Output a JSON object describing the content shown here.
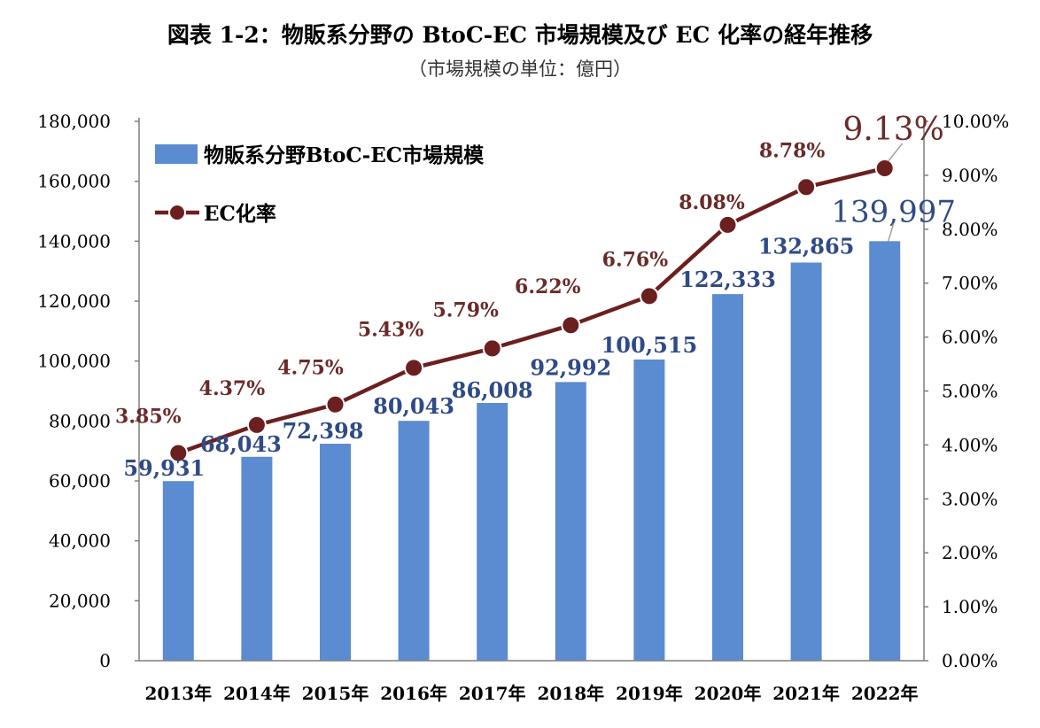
{
  "header": {
    "title": "図表 1-2：物販系分野の BtoC-EC 市場規模及び EC 化率の経年推移",
    "subtitle": "（市場規模の単位：億円）"
  },
  "chart_data": {
    "type": "bar",
    "categories": [
      "2013年",
      "2014年",
      "2015年",
      "2016年",
      "2017年",
      "2018年",
      "2019年",
      "2020年",
      "2021年",
      "2022年"
    ],
    "series": [
      {
        "name": "物販系分野BtoC-EC市場規模",
        "type": "bar",
        "axis": "left",
        "values": [
          59931,
          68043,
          72398,
          80043,
          86008,
          92992,
          100515,
          122333,
          132865,
          139997
        ],
        "labels": [
          "59,931",
          "68,043",
          "72,398",
          "80,043",
          "86,008",
          "92,992",
          "100,515",
          "122,333",
          "132,865",
          "139,997"
        ],
        "color": "#5b8bd0"
      },
      {
        "name": "EC化率",
        "type": "line",
        "axis": "right",
        "values": [
          3.85,
          4.37,
          4.75,
          5.43,
          5.79,
          6.22,
          6.76,
          8.08,
          8.78,
          9.13
        ],
        "labels": [
          "3.85%",
          "4.37%",
          "4.75%",
          "5.43%",
          "5.79%",
          "6.22%",
          "6.76%",
          "8.08%",
          "8.78%",
          "9.13%"
        ],
        "color": "#6b1f1f"
      }
    ],
    "y_left": {
      "min": 0,
      "max": 180000,
      "ticks": [
        "0",
        "20,000",
        "40,000",
        "60,000",
        "80,000",
        "100,000",
        "120,000",
        "140,000",
        "160,000",
        "180,000"
      ]
    },
    "y_right": {
      "min": 0,
      "max": 10,
      "ticks": [
        "0.00%",
        "1.00%",
        "2.00%",
        "3.00%",
        "4.00%",
        "5.00%",
        "6.00%",
        "7.00%",
        "8.00%",
        "9.00%",
        "10.00%"
      ]
    },
    "legend_position": "top-left",
    "bar_label_color": "#2f4a86",
    "line_label_color": "#6b2a2a"
  }
}
